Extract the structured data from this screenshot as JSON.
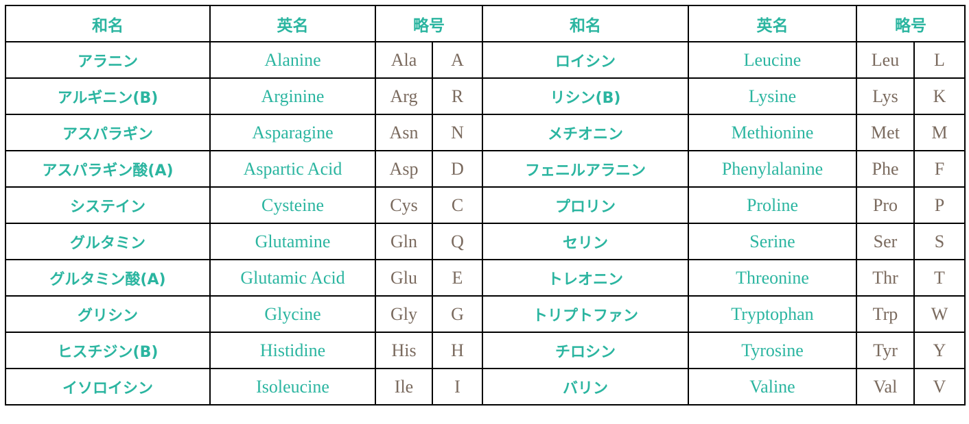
{
  "colors": {
    "heading": "#2bb5a0",
    "name": "#2bb5a0",
    "abbrev": "#7a6a5e",
    "border": "#000000"
  },
  "headers": [
    "和名",
    "英名",
    "略号",
    "和名",
    "英名",
    "略号"
  ],
  "rows": [
    [
      [
        "アラニン",
        "Alanine",
        "Ala",
        "A"
      ],
      [
        "ロイシン",
        "Leucine",
        "Leu",
        "L"
      ]
    ],
    [
      [
        "アルギニン(B)",
        "Arginine",
        "Arg",
        "R"
      ],
      [
        "リシン(B)",
        "Lysine",
        "Lys",
        "K"
      ]
    ],
    [
      [
        "アスパラギン",
        "Asparagine",
        "Asn",
        "N"
      ],
      [
        "メチオニン",
        "Methionine",
        "Met",
        "M"
      ]
    ],
    [
      [
        "アスパラギン酸(A)",
        "Aspartic Acid",
        "Asp",
        "D"
      ],
      [
        "フェニルアラニン",
        "Phenylalanine",
        "Phe",
        "F"
      ]
    ],
    [
      [
        "システイン",
        "Cysteine",
        "Cys",
        "C"
      ],
      [
        "プロリン",
        "Proline",
        "Pro",
        "P"
      ]
    ],
    [
      [
        "グルタミン",
        "Glutamine",
        "Gln",
        "Q"
      ],
      [
        "セリン",
        "Serine",
        "Ser",
        "S"
      ]
    ],
    [
      [
        "グルタミン酸(A)",
        "Glutamic Acid",
        "Glu",
        "E"
      ],
      [
        "トレオニン",
        "Threonine",
        "Thr",
        "T"
      ]
    ],
    [
      [
        "グリシン",
        "Glycine",
        "Gly",
        "G"
      ],
      [
        "トリプトファン",
        "Tryptophan",
        "Trp",
        "W"
      ]
    ],
    [
      [
        "ヒスチジン(B)",
        "Histidine",
        "His",
        "H"
      ],
      [
        "チロシン",
        "Tyrosine",
        "Tyr",
        "Y"
      ]
    ],
    [
      [
        "イソロイシン",
        "Isoleucine",
        "Ile",
        "I"
      ],
      [
        "バリン",
        "Valine",
        "Val",
        "V"
      ]
    ]
  ]
}
